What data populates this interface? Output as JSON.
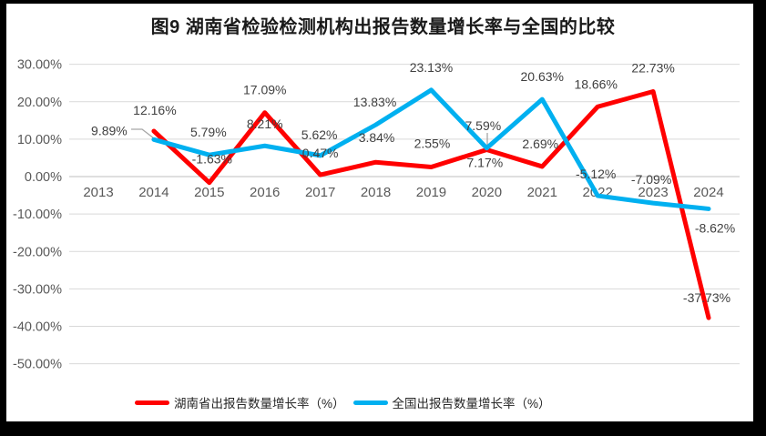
{
  "title": "图9 湖南省检验检测机构出报告数量增长率与全国的比较",
  "colors": {
    "hunan_line": "#FF0000",
    "national_line": "#00B0F0",
    "gridline": "#D9D9D9",
    "zero_axis": "#BFBFBF",
    "axis_text": "#595959",
    "data_label": "#404040",
    "leader_line": "#A6A6A6",
    "frame": "#000000",
    "background": "#FFFFFF"
  },
  "chart_data": {
    "type": "line",
    "title": "图9 湖南省检验检测机构出报告数量增长率与全国的比较",
    "categories": [
      "2013",
      "2014",
      "2015",
      "2016",
      "2017",
      "2018",
      "2019",
      "2020",
      "2021",
      "2022",
      "2023",
      "2024"
    ],
    "series": [
      {
        "name": "湖南省出报告数量增长率（%）",
        "color": "#FF0000",
        "values": [
          null,
          12.16,
          -1.63,
          17.09,
          0.47,
          3.84,
          2.55,
          7.17,
          2.69,
          18.66,
          22.73,
          -37.73
        ],
        "data_labels": [
          "",
          "12.16%",
          "-1.63%",
          "17.09%",
          "0.47%",
          "3.84%",
          "2.55%",
          "7.17%",
          "2.69%",
          "18.66%",
          "22.73%",
          "-37.73%"
        ],
        "label_offsets": [
          null,
          [
            1,
            -23
          ],
          [
            3,
            -26
          ],
          [
            0,
            -25
          ],
          [
            0,
            -24
          ],
          [
            1,
            -27
          ],
          [
            1,
            -26
          ],
          [
            -2,
            14
          ],
          [
            -2,
            -25
          ],
          [
            -2,
            -25
          ],
          [
            0,
            -26
          ],
          [
            -2,
            -22
          ]
        ]
      },
      {
        "name": "全国出报告数量增长率（%）",
        "color": "#00B0F0",
        "values": [
          null,
          9.89,
          5.79,
          8.21,
          5.62,
          13.83,
          23.13,
          7.59,
          20.63,
          -5.12,
          -7.09,
          -8.62
        ],
        "data_labels": [
          "",
          "9.89%",
          "5.79%",
          "8.21%",
          "5.62%",
          "13.83%",
          "23.13%",
          "7.59%",
          "20.63%",
          "-5.12%",
          "-7.09%",
          "-8.62%"
        ],
        "label_offsets": [
          null,
          [
            -49,
            -10
          ],
          [
            -1,
            -25
          ],
          [
            0,
            -24
          ],
          [
            -1,
            -23
          ],
          [
            -1,
            -25
          ],
          [
            0,
            -25
          ],
          [
            -4,
            -25
          ],
          [
            0,
            -25
          ],
          [
            -2,
            -24
          ],
          [
            -2,
            -26
          ],
          [
            7,
            21
          ]
        ]
      }
    ],
    "ylim": [
      -50,
      30
    ],
    "ytick_step": 10,
    "ytick_labels": [
      "30.00%",
      "20.00%",
      "10.00%",
      "0.00%",
      "-10.00%",
      "-20.00%",
      "-30.00%",
      "-40.00%",
      "-50.00%"
    ],
    "grid": true,
    "legend_position": "bottom",
    "leader_lines": [
      {
        "for": "9.89%",
        "points": [
          [
            144,
            142
          ],
          [
            156,
            142
          ],
          [
            169,
            152
          ]
        ]
      },
      {
        "for": "7.59%",
        "points": [
          [
            535,
            146
          ],
          [
            535,
            161
          ]
        ]
      }
    ]
  }
}
